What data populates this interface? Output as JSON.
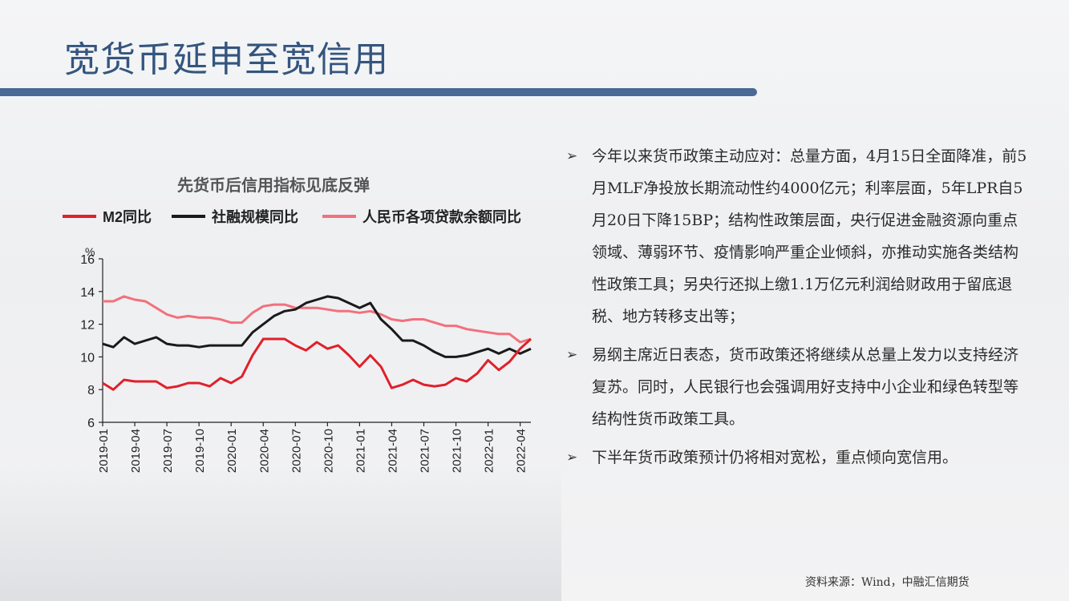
{
  "page": {
    "title": "宽货币延申至宽信用",
    "source": "资料来源：Wind，中融汇信期货"
  },
  "bullets": [
    "今年以来货币政策主动应对：总量方面，4月15日全面降准，前5月MLF净投放长期流动性约4000亿元；利率层面，5年LPR自5月20日下降15BP；结构性政策层面，央行促进金融资源向重点领域、薄弱环节、疫情影响严重企业倾斜，亦推动实施各类结构性政策工具；另央行还拟上缴1.1万亿元利润给财政用于留底退税、地方转移支出等；",
    "易纲主席近日表态，货币政策还将继续从总量上发力以支持经济复苏。同时，人民银行也会强调用好支持中小企业和绿色转型等结构性货币政策工具。",
    "下半年货币政策预计仍将相对宽松，重点倾向宽信用。"
  ],
  "bullet_icon": "arrow-right-icon",
  "chart_data": {
    "type": "line",
    "title": "先货币后信用指标见底反弹",
    "ylabel": "%",
    "ylim": [
      6,
      16
    ],
    "yticks": [
      6,
      8,
      10,
      12,
      14,
      16
    ],
    "ytick_labels": [
      "6",
      "8",
      "10",
      "12",
      "14",
      "16"
    ],
    "x_start": "2019-01",
    "x_months": 41,
    "xtick_labels": [
      "2019-01",
      "2019-04",
      "2019-07",
      "2019-10",
      "2020-01",
      "2020-04",
      "2020-07",
      "2020-10",
      "2021-01",
      "2021-04",
      "2021-07",
      "2021-10",
      "2022-01",
      "2022-04"
    ],
    "xtick_index": [
      0,
      3,
      6,
      9,
      12,
      15,
      18,
      21,
      24,
      27,
      30,
      33,
      36,
      39
    ],
    "legend_position": "top",
    "series": [
      {
        "name": "M2同比",
        "color": "#e0202b",
        "values": [
          8.4,
          8.0,
          8.6,
          8.5,
          8.5,
          8.5,
          8.1,
          8.2,
          8.4,
          8.4,
          8.2,
          8.7,
          8.4,
          8.8,
          10.1,
          11.1,
          11.1,
          11.1,
          10.7,
          10.4,
          10.9,
          10.5,
          10.7,
          10.1,
          9.4,
          10.1,
          9.4,
          8.1,
          8.3,
          8.6,
          8.3,
          8.2,
          8.3,
          8.7,
          8.5,
          9.0,
          9.8,
          9.2,
          9.7,
          10.5,
          11.1
        ]
      },
      {
        "name": "社融规模同比",
        "color": "#1a1a1a",
        "values": [
          10.8,
          10.6,
          11.2,
          10.8,
          11.0,
          11.2,
          10.8,
          10.7,
          10.7,
          10.6,
          10.7,
          10.7,
          10.7,
          10.7,
          11.5,
          12.0,
          12.5,
          12.8,
          12.9,
          13.3,
          13.5,
          13.7,
          13.6,
          13.3,
          13.0,
          13.3,
          12.3,
          11.7,
          11.0,
          11.0,
          10.7,
          10.3,
          10.0,
          10.0,
          10.1,
          10.3,
          10.5,
          10.2,
          10.5,
          10.2,
          10.5
        ]
      },
      {
        "name": "人民币各项贷款余额同比",
        "color": "#f2707c",
        "values": [
          13.4,
          13.4,
          13.7,
          13.5,
          13.4,
          13.0,
          12.6,
          12.4,
          12.5,
          12.4,
          12.4,
          12.3,
          12.1,
          12.1,
          12.7,
          13.1,
          13.2,
          13.2,
          13.0,
          13.0,
          13.0,
          12.9,
          12.8,
          12.8,
          12.7,
          12.8,
          12.6,
          12.3,
          12.2,
          12.3,
          12.3,
          12.1,
          11.9,
          11.9,
          11.7,
          11.6,
          11.5,
          11.4,
          11.4,
          10.9,
          11.1
        ]
      }
    ]
  }
}
